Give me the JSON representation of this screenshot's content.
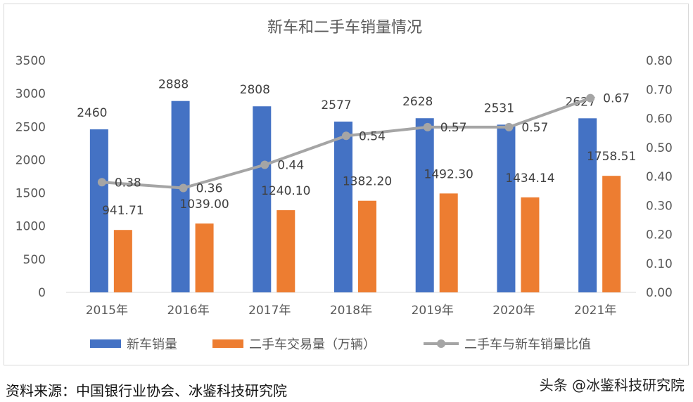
{
  "chart_data": {
    "type": "bar+line",
    "title": "新车和二手车销量情况",
    "categories": [
      "2015年",
      "2016年",
      "2017年",
      "2018年",
      "2019年",
      "2020年",
      "2021年"
    ],
    "series": [
      {
        "name": "新车销量",
        "type": "bar",
        "axis": "left",
        "color": "#4472C4",
        "values": [
          2460,
          2888,
          2808,
          2577,
          2628,
          2531,
          2627
        ],
        "labels": [
          "2460",
          "2888",
          "2808",
          "2577",
          "2628",
          "2531",
          "2627"
        ]
      },
      {
        "name": "二手车交易量（万辆）",
        "type": "bar",
        "axis": "left",
        "color": "#ED7D31",
        "values": [
          941.71,
          1039.0,
          1240.1,
          1382.2,
          1492.3,
          1434.14,
          1758.51
        ],
        "labels": [
          "941.71",
          "1039.00",
          "1240.10",
          "1382.20",
          "1492.30",
          "1434.14",
          "1758.51"
        ]
      },
      {
        "name": "二手车与新车销量比值",
        "type": "line",
        "axis": "right",
        "color": "#A5A5A5",
        "values": [
          0.38,
          0.36,
          0.44,
          0.54,
          0.57,
          0.57,
          0.67
        ],
        "labels": [
          "0.38",
          "0.36",
          "0.44",
          "0.54",
          "0.57",
          "0.57",
          "0.67"
        ]
      }
    ],
    "left_axis": {
      "range": [
        0,
        3500
      ],
      "ticks": [
        "0",
        "500",
        "1000",
        "1500",
        "2000",
        "2500",
        "3000",
        "3500"
      ]
    },
    "right_axis": {
      "range": [
        0,
        0.8
      ],
      "ticks": [
        "0.00",
        "0.10",
        "0.20",
        "0.30",
        "0.40",
        "0.50",
        "0.60",
        "0.70",
        "0.80"
      ]
    },
    "grid": false,
    "legend": "bottom"
  },
  "footer": {
    "source": "资料来源：中国银行业协会、冰鉴科技研究院",
    "watermark": "头条 @冰鉴科技研究院"
  }
}
